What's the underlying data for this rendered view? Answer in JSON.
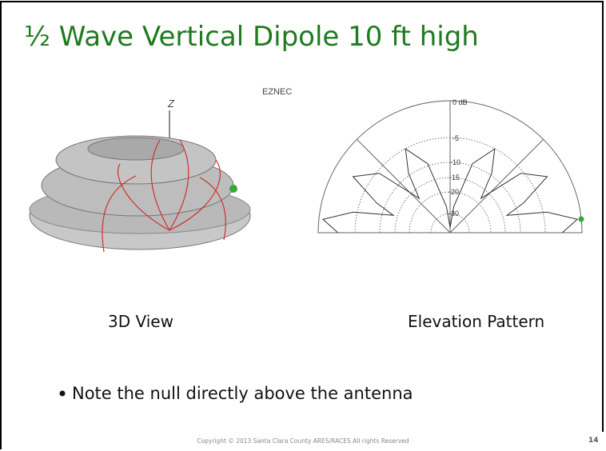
{
  "title": "½ Wave Vertical Dipole 10 ft high",
  "view_3d": {
    "axis_label": "Z",
    "software_label": "EZNEC",
    "caption": "3D View"
  },
  "elevation": {
    "ring_labels": [
      "0 dB",
      "-5",
      "-10",
      "-15",
      "-20",
      "-30"
    ],
    "caption": "Elevation Pattern"
  },
  "bullets": [
    "Note the null directly above the antenna"
  ],
  "footer": {
    "copyright": "Copyright © 2013 Santa Clara County ARES/RACES All rights Reserved",
    "page_number": "14"
  }
}
